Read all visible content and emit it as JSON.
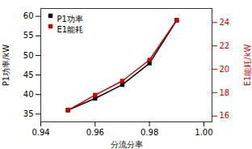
{
  "chart_data": {
    "type": "line",
    "x": [
      0.95,
      0.96,
      0.97,
      0.98,
      0.99
    ],
    "series": [
      {
        "name": "P1功率",
        "color": "#000000",
        "values": [
          36.0,
          39.0,
          42.5,
          48.0,
          59.0
        ]
      },
      {
        "name": "E1能耗",
        "color": "#cc0000",
        "axis": "y2",
        "values": [
          16.5,
          17.8,
          19.0,
          20.8,
          24.2
        ]
      }
    ],
    "xlabel": "分流分率",
    "ylabel": "P1功率/kW",
    "y2label": "E1能耗/kW",
    "xlim": [
      0.94,
      1.003
    ],
    "xticks": [
      0.94,
      0.96,
      0.98,
      {
        "value": 1.0,
        "label": "1.00"
      }
    ],
    "ylim": [
      33,
      62
    ],
    "yticks": [
      35,
      40,
      45,
      50,
      55,
      60
    ],
    "y2lim": [
      15.5,
      25.2
    ],
    "y2ticks": [
      16,
      18,
      20,
      22,
      24
    ],
    "marker": "square",
    "legend": "upper left"
  }
}
